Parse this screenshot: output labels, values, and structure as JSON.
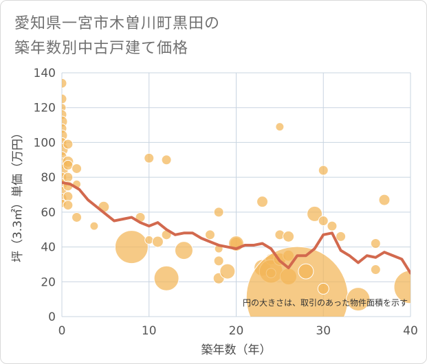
{
  "chart_data": {
    "type": "scatter",
    "title": "愛知県一宮市木曽川町黒田の\n築年数別中古戸建て価格",
    "xlabel": "築年数（年）",
    "ylabel": "坪（3.3㎡）単価（万円）",
    "xlim": [
      0,
      40
    ],
    "ylim": [
      0,
      140
    ],
    "x_ticks": [
      0,
      10,
      20,
      30,
      40
    ],
    "y_ticks": [
      0,
      20,
      40,
      60,
      80,
      100,
      120,
      140
    ],
    "grid": true,
    "annotation": "円の大きさは、取引のあった物件面積を示す",
    "colors": {
      "bubble": "#f3b657",
      "line": "#d2694e",
      "grid": "#c8d4e0"
    },
    "points": [
      {
        "x": 0,
        "y": 134,
        "r": 7
      },
      {
        "x": 0,
        "y": 125,
        "r": 7
      },
      {
        "x": 0,
        "y": 120,
        "r": 6
      },
      {
        "x": 0,
        "y": 116,
        "r": 7
      },
      {
        "x": 0,
        "y": 112,
        "r": 8
      },
      {
        "x": 0,
        "y": 108,
        "r": 7
      },
      {
        "x": 0,
        "y": 104,
        "r": 8
      },
      {
        "x": 0,
        "y": 100,
        "r": 7
      },
      {
        "x": 0,
        "y": 96,
        "r": 9
      },
      {
        "x": 0,
        "y": 92,
        "r": 7
      },
      {
        "x": 0,
        "y": 88,
        "r": 8
      },
      {
        "x": 0,
        "y": 84,
        "r": 9
      },
      {
        "x": 0,
        "y": 80,
        "r": 7
      },
      {
        "x": 0,
        "y": 76,
        "r": 8
      },
      {
        "x": 0,
        "y": 72,
        "r": 7
      },
      {
        "x": 0,
        "y": 68,
        "r": 7
      },
      {
        "x": 0,
        "y": 65,
        "r": 6
      },
      {
        "x": 0.7,
        "y": 99,
        "r": 7
      },
      {
        "x": 0.7,
        "y": 89,
        "r": 8
      },
      {
        "x": 0.7,
        "y": 87,
        "r": 7
      },
      {
        "x": 0.7,
        "y": 80,
        "r": 7
      },
      {
        "x": 0.7,
        "y": 75,
        "r": 7
      },
      {
        "x": 0.7,
        "y": 69,
        "r": 7
      },
      {
        "x": 0.7,
        "y": 64,
        "r": 7
      },
      {
        "x": 1.7,
        "y": 85,
        "r": 7
      },
      {
        "x": 1.7,
        "y": 76,
        "r": 6
      },
      {
        "x": 1.7,
        "y": 57,
        "r": 7
      },
      {
        "x": 3.7,
        "y": 52,
        "r": 6
      },
      {
        "x": 4.8,
        "y": 63,
        "r": 8
      },
      {
        "x": 8,
        "y": 40,
        "r": 24
      },
      {
        "x": 9,
        "y": 57,
        "r": 7
      },
      {
        "x": 10,
        "y": 91,
        "r": 7
      },
      {
        "x": 10,
        "y": 44,
        "r": 6
      },
      {
        "x": 11,
        "y": 43,
        "r": 8
      },
      {
        "x": 12,
        "y": 90,
        "r": 7
      },
      {
        "x": 12,
        "y": 47,
        "r": 7
      },
      {
        "x": 12,
        "y": 22,
        "r": 18
      },
      {
        "x": 14,
        "y": 38,
        "r": 13
      },
      {
        "x": 17,
        "y": 47,
        "r": 7
      },
      {
        "x": 18,
        "y": 60,
        "r": 7
      },
      {
        "x": 18,
        "y": 39,
        "r": 6
      },
      {
        "x": 18,
        "y": 32,
        "r": 7
      },
      {
        "x": 18,
        "y": 22,
        "r": 8
      },
      {
        "x": 19,
        "y": 26,
        "r": 11
      },
      {
        "x": 20,
        "y": 42,
        "r": 9
      },
      {
        "x": 20,
        "y": 42,
        "r": 11
      },
      {
        "x": 23,
        "y": 66,
        "r": 8
      },
      {
        "x": 23,
        "y": 28,
        "r": 12
      },
      {
        "x": 24,
        "y": 33,
        "r": 8
      },
      {
        "x": 24,
        "y": 26,
        "r": 17
      },
      {
        "x": 24,
        "y": 25,
        "r": 7
      },
      {
        "x": 25,
        "y": 109,
        "r": 6
      },
      {
        "x": 25,
        "y": 47,
        "r": 7
      },
      {
        "x": 25,
        "y": 33,
        "r": 9
      },
      {
        "x": 26,
        "y": 46,
        "r": 8
      },
      {
        "x": 26,
        "y": 35,
        "r": 8
      },
      {
        "x": 26,
        "y": 23,
        "r": 12
      },
      {
        "x": 27,
        "y": 11,
        "r": 74
      },
      {
        "x": 28,
        "y": 26,
        "r": 11
      },
      {
        "x": 29,
        "y": 59,
        "r": 11
      },
      {
        "x": 30,
        "y": 84,
        "r": 7
      },
      {
        "x": 30,
        "y": 55,
        "r": 7
      },
      {
        "x": 30,
        "y": 16,
        "r": 8
      },
      {
        "x": 31,
        "y": 52,
        "r": 7
      },
      {
        "x": 32,
        "y": 46,
        "r": 7
      },
      {
        "x": 34,
        "y": 10,
        "r": 17
      },
      {
        "x": 36,
        "y": 42,
        "r": 7
      },
      {
        "x": 36,
        "y": 27,
        "r": 7
      },
      {
        "x": 37,
        "y": 67,
        "r": 8
      },
      {
        "x": 40,
        "y": 17,
        "r": 24
      }
    ],
    "trend": {
      "x": [
        0,
        1,
        2,
        3,
        4,
        5,
        6,
        7,
        8,
        9,
        10,
        11,
        12,
        13,
        14,
        15,
        16,
        17,
        18,
        19,
        20,
        21,
        22,
        23,
        24,
        25,
        26,
        27,
        28,
        29,
        30,
        31,
        32,
        33,
        34,
        35,
        36,
        37,
        38,
        39,
        40
      ],
      "y": [
        77,
        76,
        73,
        67,
        63,
        59,
        55,
        56,
        57,
        54,
        52,
        54,
        50,
        47,
        48,
        48,
        45,
        43,
        41,
        40,
        39,
        41,
        41,
        42,
        39,
        32,
        28,
        35,
        35,
        39,
        47,
        48,
        38,
        35,
        31,
        35,
        34,
        37,
        35,
        33,
        25
      ]
    }
  }
}
